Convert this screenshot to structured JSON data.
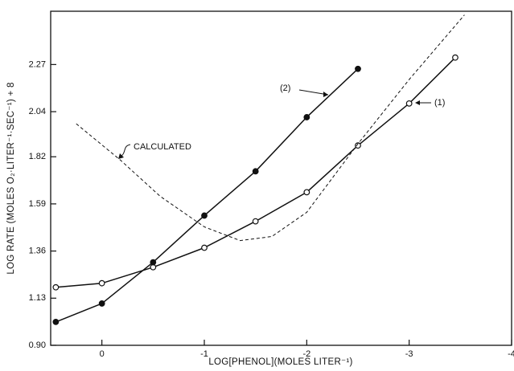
{
  "chart_data": {
    "type": "line",
    "x_label": "LOG[PHENOL](MOLES LITER⁻¹)",
    "y_label": "LOG RATE (MOLES O₂·LITER⁻¹·SEC⁻¹) + 8",
    "xlim": [
      0.5,
      -4
    ],
    "xticks": [
      0,
      -1,
      -2,
      -3,
      -4
    ],
    "ylim": [
      0.9,
      2.53
    ],
    "yticks": [
      {
        "value": 0.9,
        "label": "0.90"
      },
      1.13,
      1.36,
      1.59,
      1.82,
      2.04,
      2.27
    ],
    "grid": false,
    "series": [
      {
        "name": "(1)",
        "color": "#111111",
        "marker": "open",
        "dashed": false,
        "x": [
          0.45,
          0,
          -0.5,
          -1,
          -1.5,
          -2,
          -2.5,
          -3,
          -3.45
        ],
        "values": [
          1.183,
          1.203,
          1.281,
          1.376,
          1.505,
          1.647,
          1.875,
          2.08,
          2.304
        ]
      },
      {
        "name": "(2)",
        "color": "#111111",
        "marker": "filled",
        "dashed": false,
        "x": [
          0.45,
          0,
          -0.5,
          -1,
          -1.5,
          -2,
          -2.5
        ],
        "values": [
          1.014,
          1.104,
          1.305,
          1.533,
          1.749,
          2.013,
          2.249
        ]
      },
      {
        "name": "CALCULATED",
        "color": "#111111",
        "marker": "none",
        "dashed": true,
        "x": [
          0.25,
          -0.18,
          -0.57,
          -1.0,
          -1.35,
          -1.66,
          -2.0,
          -2.5,
          -3.0,
          -3.54
        ],
        "values": [
          1.981,
          1.804,
          1.627,
          1.478,
          1.411,
          1.431,
          1.549,
          1.883,
          2.197,
          2.512
        ]
      }
    ]
  }
}
